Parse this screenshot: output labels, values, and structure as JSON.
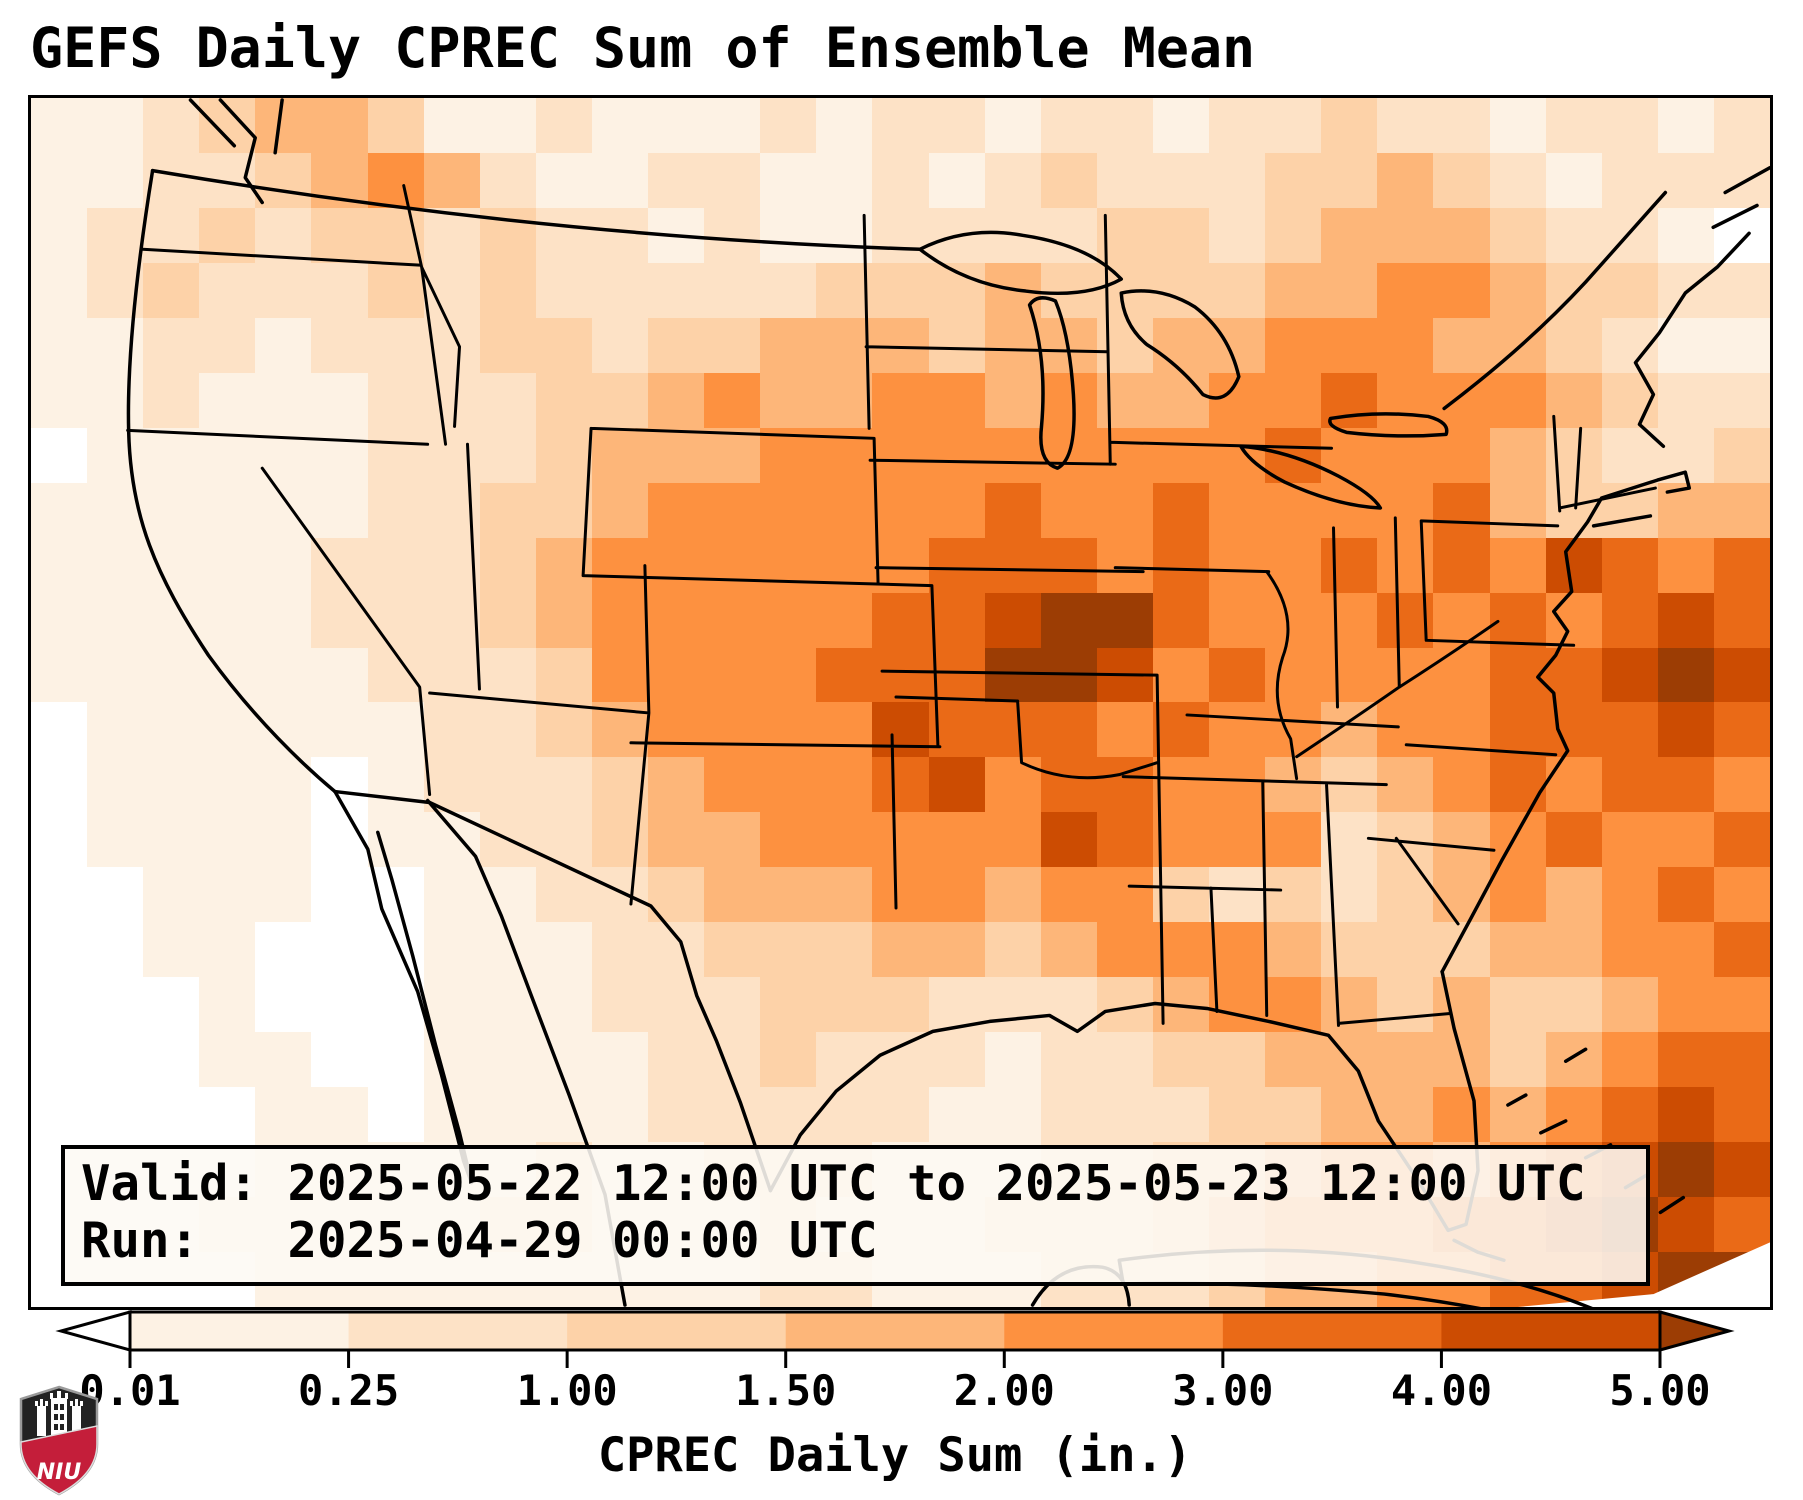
{
  "title": "GEFS Daily CPREC Sum of Ensemble Mean",
  "info_box": {
    "valid_line": "Valid: 2025-05-22 12:00 UTC to 2025-05-23 12:00 UTC",
    "run_line": "Run:   2025-04-29 00:00 UTC"
  },
  "colorbar": {
    "label": "CPREC Daily Sum (in.)",
    "tick_labels": [
      "0.01",
      "0.25",
      "1.00",
      "1.50",
      "2.00",
      "3.00",
      "4.00",
      "5.00"
    ],
    "segment_colors": [
      "#fdf2e4",
      "#fde2c6",
      "#fdd2a8",
      "#fdb679",
      "#fd9140",
      "#ea6a17",
      "#cc4c02"
    ],
    "under_color": "#ffffff",
    "over_color": "#9c3d04",
    "outline_color": "#000000"
  },
  "logo": {
    "label": "NIU",
    "shield_red": "#c41e3a",
    "shield_black": "#222222"
  },
  "chart_data": {
    "type": "heatmap",
    "title": "GEFS Daily CPREC Sum of Ensemble Mean",
    "variable": "CPREC Daily Sum (in.)",
    "valid_period": "2025-05-22 12:00 UTC to 2025-05-23 12:00 UTC",
    "run_time": "2025-04-29 00:00 UTC",
    "levels_in": [
      0.01,
      0.25,
      1.0,
      1.5,
      2.0,
      3.0,
      4.0,
      5.0
    ],
    "palette": [
      "#ffffff",
      "#fdf2e4",
      "#fde2c6",
      "#fdd2a8",
      "#fdb679",
      "#fd9140",
      "#ea6a17",
      "#cc4c02",
      "#9c3d04"
    ],
    "grid_note": "Level index 0-8 per cell; 0 = <0.01 in, 8 = >5.00 in. CONUS Lambert-conformal view, 31 cols x 22 rows.",
    "grid_cols": 31,
    "grid_rows": 22,
    "grid_levels": [
      "1123443112111212212212232212212",
      "1122345421122112123222334321222",
      "1223233232212112222332344432210",
      "1232223232222233343333445543322",
      "1122122233233444344344555443211",
      "1121112223345445545445565554322",
      "0111112223444555555555655543223",
      "1111112233455555565565555643344",
      "1111122234555555666565565657656",
      "1111122234555556678865556565676",
      "1111112223555566688756555566787",
      "0111111223455557666565545566676",
      "0111101222345556756655434565665",
      "0111101122344555557655523456556",
      "0011100112234445545532323454565",
      "0011000111223334434555433344556",
      "0001000111222333222345543433455",
      "0001100111122322212233444434566",
      "0000110111122222112223344545676",
      "0000111112112221112233455456787",
      "0001111122111211122234555667876",
      "0000111111111221112223445566788"
    ]
  }
}
